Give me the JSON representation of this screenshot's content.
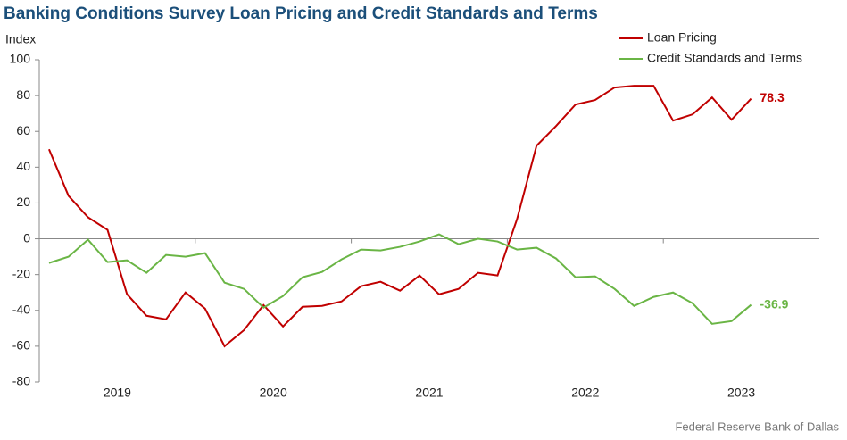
{
  "chart_data": {
    "type": "line",
    "title": "Banking Conditions Survey Loan Pricing and Credit Standards and Terms",
    "y_axis_label": "Index",
    "source": "Federal Reserve Bank of Dallas",
    "categories": [
      "2019",
      "2019",
      "2019",
      "2019",
      "2019",
      "2019",
      "2019",
      "2019",
      "2020",
      "2020",
      "2020",
      "2020",
      "2020",
      "2020",
      "2020",
      "2020",
      "2021",
      "2021",
      "2021",
      "2021",
      "2021",
      "2021",
      "2021",
      "2021",
      "2022",
      "2022",
      "2022",
      "2022",
      "2022",
      "2022",
      "2022",
      "2022",
      "2023",
      "2023",
      "2023",
      "2023",
      "2023"
    ],
    "series": [
      {
        "name": "Loan Pricing",
        "color": "#c00000",
        "values": [
          50,
          24,
          12,
          5,
          -31,
          -43,
          -45,
          -30,
          -39,
          -60,
          -51,
          -37,
          -49,
          -38,
          -37.5,
          -35,
          -26.5,
          -24,
          -29,
          -20.5,
          -31,
          -28,
          -19,
          -20.5,
          11,
          52,
          63,
          75,
          77.5,
          84.5,
          85.5,
          85.5,
          66,
          69.5,
          79,
          66.5,
          78.3
        ]
      },
      {
        "name": "Credit Standards and Terms",
        "color": "#6ab545",
        "values": [
          -13.5,
          -10,
          -0.5,
          -13,
          -12,
          -19,
          -9,
          -10,
          -8,
          -24.5,
          -28,
          -38.5,
          -32,
          -21.5,
          -18.5,
          -11.5,
          -6,
          -6.5,
          -4.5,
          -1.5,
          2.5,
          -3,
          0,
          -1.5,
          -6,
          -5,
          -11,
          -21.5,
          -21,
          -28,
          -37.5,
          -32.5,
          -30,
          -36,
          -47.5,
          -46,
          -36.9
        ]
      }
    ],
    "ylim": [
      -80,
      100
    ],
    "yticks": [
      -80,
      -60,
      -40,
      -20,
      0,
      20,
      40,
      60,
      80,
      100
    ],
    "legend": "top-right"
  }
}
